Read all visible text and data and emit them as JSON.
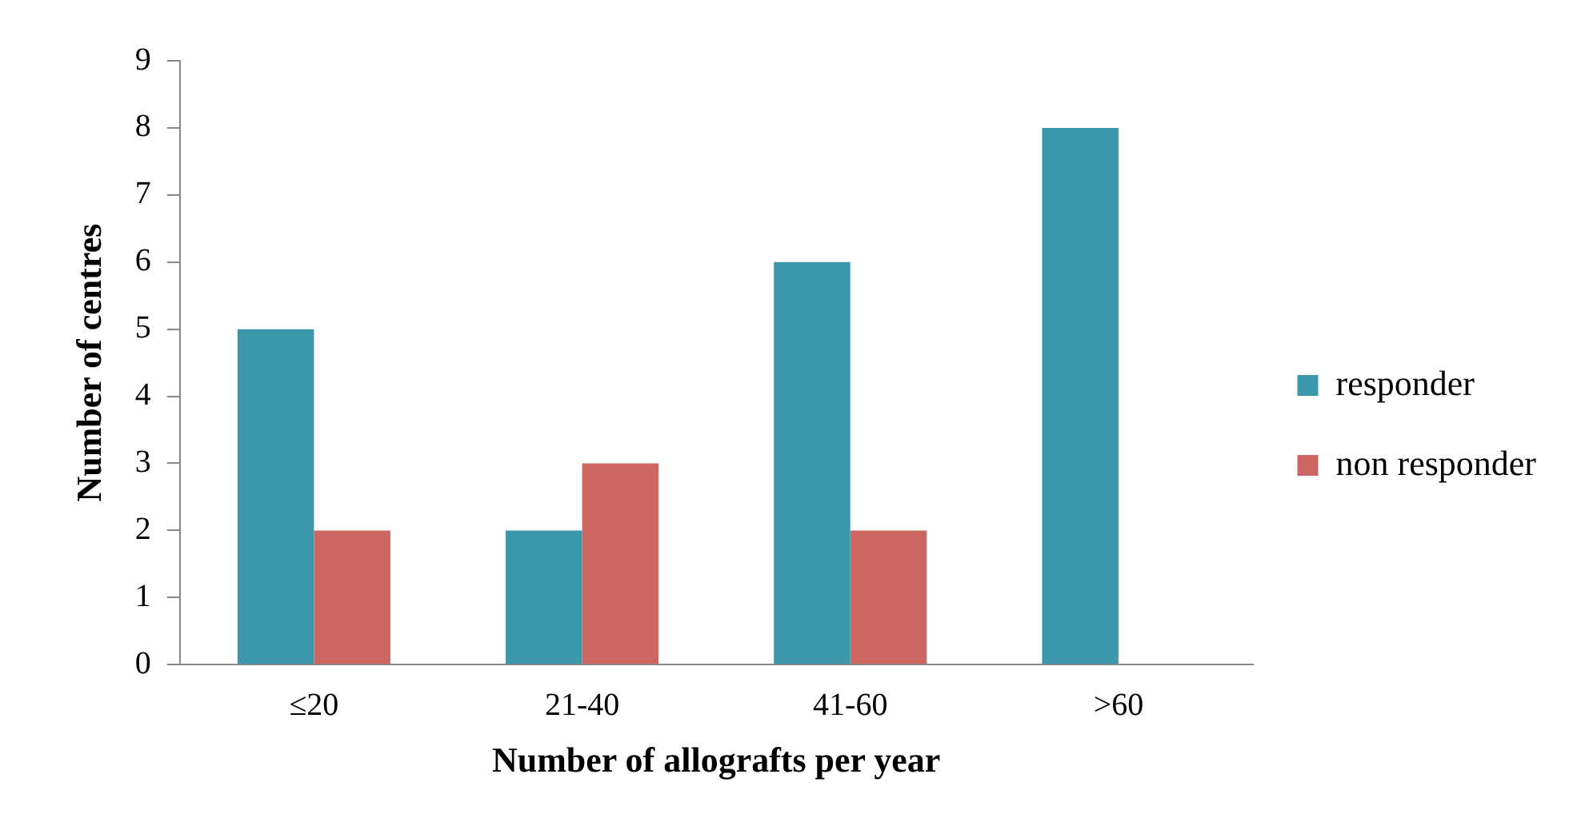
{
  "chart_data": {
    "type": "bar",
    "xlabel": "Number of allografts per year",
    "ylabel": "Number of centres",
    "categories": [
      "≤20",
      "21-40",
      "41-60",
      ">60"
    ],
    "series": [
      {
        "name": "responder",
        "color": "#3d97ab",
        "values": [
          5,
          2,
          6,
          8
        ]
      },
      {
        "name": "non responder",
        "color": "#cd6560",
        "values": [
          2,
          3,
          2,
          0
        ]
      }
    ],
    "ylim": [
      0,
      9
    ],
    "yticks": [
      0,
      1,
      2,
      3,
      4,
      5,
      6,
      7,
      8,
      9
    ],
    "grid": false,
    "legend": "right"
  }
}
